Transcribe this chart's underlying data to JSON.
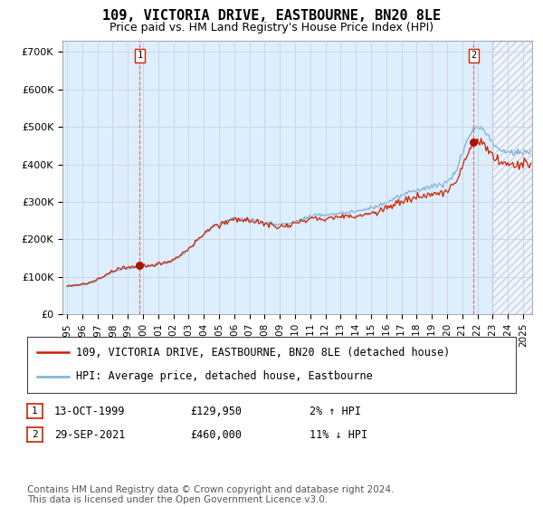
{
  "title": "109, VICTORIA DRIVE, EASTBOURNE, BN20 8LE",
  "subtitle": "Price paid vs. HM Land Registry's House Price Index (HPI)",
  "ylabel_ticks": [
    "£0",
    "£100K",
    "£200K",
    "£300K",
    "£400K",
    "£500K",
    "£600K",
    "£700K"
  ],
  "ytick_values": [
    0,
    100000,
    200000,
    300000,
    400000,
    500000,
    600000,
    700000
  ],
  "ylim": [
    0,
    730000
  ],
  "xlim_start": 1994.7,
  "xlim_end": 2025.6,
  "purchase1": {
    "date_num": 1999.79,
    "price": 129950,
    "label": "1",
    "date_str": "13-OCT-1999",
    "price_str": "£129,950",
    "hpi_str": "2% ↑ HPI"
  },
  "purchase2": {
    "date_num": 2021.75,
    "price": 460000,
    "label": "2",
    "date_str": "29-SEP-2021",
    "price_str": "£460,000",
    "hpi_str": "11% ↓ HPI"
  },
  "legend_line1": "109, VICTORIA DRIVE, EASTBOURNE, BN20 8LE (detached house)",
  "legend_line2": "HPI: Average price, detached house, Eastbourne",
  "footer": "Contains HM Land Registry data © Crown copyright and database right 2024.\nThis data is licensed under the Open Government Licence v3.0.",
  "hpi_color": "#7ab0d4",
  "price_color": "#cc2200",
  "marker_color": "#aa1100",
  "vline_color": "#dd6666",
  "grid_color": "#cccccc",
  "bg_color": "#ffffff",
  "plot_bg_color": "#ddeeff",
  "title_fontsize": 11,
  "subtitle_fontsize": 9,
  "tick_fontsize": 8,
  "legend_fontsize": 8.5,
  "footer_fontsize": 7.5
}
